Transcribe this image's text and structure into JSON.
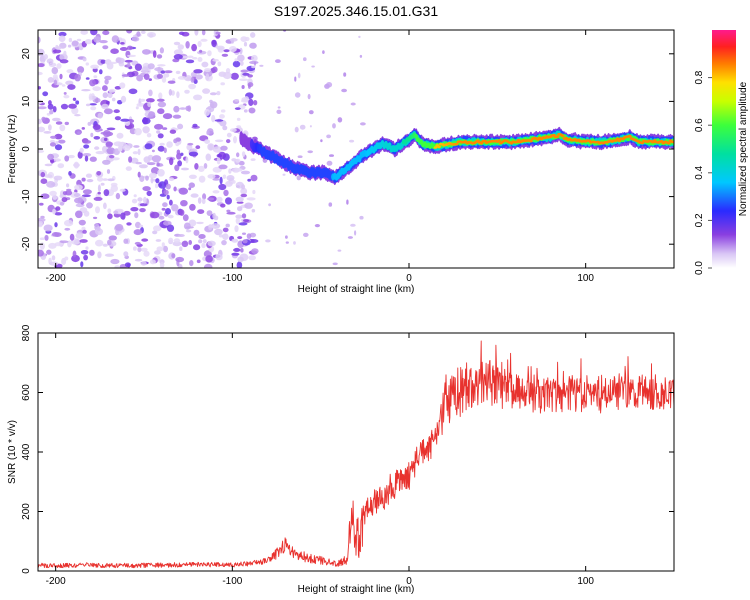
{
  "title": "S197.2025.346.15.01.G31",
  "colors": {
    "snr_line": "#e8322e",
    "spectrogram_noise": "#8a3fe0",
    "spectrogram_ridge": "#e8322e"
  },
  "chart_data": [
    {
      "type": "heatmap",
      "name": "spectrogram",
      "xlabel": "Height of straight line (km)",
      "ylabel": "Frequency (Hz)",
      "xlim": [
        -210,
        150
      ],
      "ylim": [
        -25,
        25
      ],
      "x_ticks": [
        -200,
        -100,
        0,
        100
      ],
      "y_ticks": [
        20,
        10,
        0,
        -10,
        -20
      ],
      "colorbar": {
        "label": "Normalized spectral amplitude",
        "range": [
          0,
          1
        ],
        "ticks": [
          0.0,
          0.2,
          0.4,
          0.6,
          0.8
        ],
        "colormap": "rainbow (white-purple-blue-cyan-green-yellow-red-magenta)"
      },
      "ridge": {
        "x": [
          -95,
          -85,
          -75,
          -65,
          -55,
          -48,
          -42,
          -35,
          -25,
          -15,
          -8,
          0,
          3,
          8,
          15,
          30,
          60,
          70,
          80,
          85,
          90,
          100,
          110,
          120,
          125,
          130,
          140,
          150
        ],
        "y": [
          2,
          0,
          -2,
          -4,
          -5,
          -5,
          -6,
          -4,
          -1,
          1,
          0,
          2,
          3,
          1,
          0.5,
          1.5,
          1.5,
          2,
          2.5,
          3,
          2,
          1.5,
          1.5,
          2,
          2.5,
          1.5,
          1.5,
          1.5
        ],
        "amplitude": [
          0.15,
          0.25,
          0.3,
          0.3,
          0.3,
          0.3,
          0.35,
          0.35,
          0.35,
          0.4,
          0.45,
          0.5,
          0.55,
          0.7,
          0.8,
          0.85,
          0.85,
          0.85,
          0.85,
          0.85,
          0.85,
          0.85,
          0.85,
          0.85,
          0.85,
          0.85,
          0.85,
          0.85
        ]
      },
      "noise_region_x": [
        -210,
        -95
      ]
    },
    {
      "type": "line",
      "name": "snr",
      "xlabel": "Height of straight line (km)",
      "ylabel": "SNR (10 * v/v)",
      "xlim": [
        -210,
        150
      ],
      "ylim": [
        0,
        800
      ],
      "x_ticks": [
        -200,
        -100,
        0,
        100
      ],
      "y_ticks": [
        0,
        200,
        400,
        600,
        800
      ],
      "series": [
        {
          "name": "SNR",
          "x": [
            -210,
            -200,
            -180,
            -160,
            -140,
            -120,
            -100,
            -90,
            -80,
            -75,
            -70,
            -65,
            -60,
            -55,
            -50,
            -45,
            -40,
            -35,
            -33,
            -30,
            -28,
            -25,
            -20,
            -15,
            -10,
            -5,
            0,
            5,
            10,
            15,
            18,
            20,
            22,
            25,
            30,
            35,
            40,
            45,
            50,
            55,
            60,
            70,
            80,
            90,
            100,
            110,
            120,
            130,
            140,
            150
          ],
          "values": [
            20,
            18,
            20,
            18,
            20,
            22,
            20,
            25,
            35,
            60,
            90,
            60,
            50,
            40,
            35,
            30,
            25,
            40,
            230,
            120,
            170,
            200,
            230,
            250,
            280,
            300,
            320,
            380,
            400,
            440,
            500,
            560,
            570,
            580,
            600,
            620,
            640,
            630,
            620,
            610,
            600,
            590,
            590,
            590,
            590,
            590,
            600,
            600,
            600,
            600
          ],
          "amplitude": [
            8,
            8,
            8,
            8,
            8,
            8,
            8,
            8,
            10,
            20,
            25,
            20,
            18,
            15,
            15,
            12,
            10,
            20,
            60,
            70,
            60,
            50,
            50,
            50,
            50,
            50,
            50,
            50,
            50,
            50,
            60,
            80,
            80,
            80,
            80,
            80,
            80,
            80,
            80,
            60,
            60,
            60,
            60,
            60,
            60,
            60,
            60,
            60,
            60,
            60
          ]
        }
      ]
    }
  ]
}
